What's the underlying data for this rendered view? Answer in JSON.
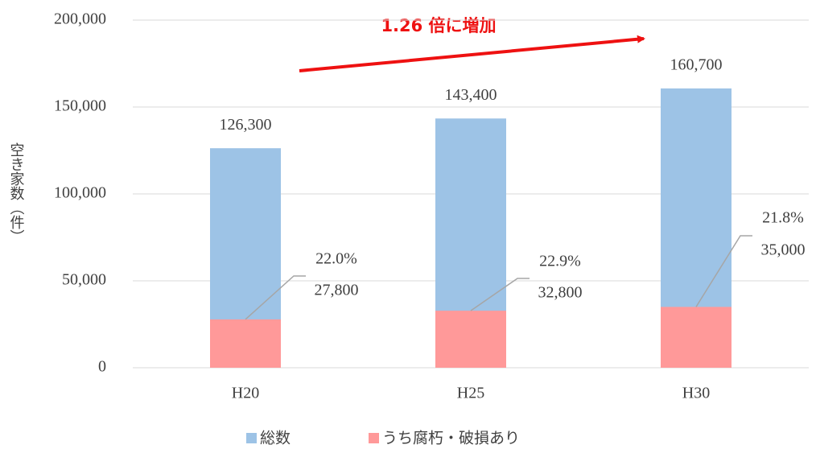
{
  "chart_data": {
    "type": "bar",
    "y_label": "空き家数（件）",
    "annotation": "1.26 倍に増加",
    "categories": [
      "H20",
      "H25",
      "H30"
    ],
    "series": [
      {
        "name": "総数",
        "color": "#9dc3e6",
        "values": [
          126300,
          143400,
          160700
        ],
        "value_labels": [
          "126,300",
          "143,400",
          "160,700"
        ]
      },
      {
        "name": "うち腐朽・破損あり",
        "color": "#ff9999",
        "values": [
          27800,
          32800,
          35000
        ],
        "value_labels": [
          "27,800",
          "32,800",
          "35,000"
        ]
      }
    ],
    "shares": [
      {
        "value": 22.0,
        "label": "22.0%"
      },
      {
        "value": 22.9,
        "label": "22.9%"
      },
      {
        "value": 21.8,
        "label": "21.8%"
      }
    ],
    "ylim": [
      0,
      200000
    ],
    "yticks": [
      0,
      {
        "value": 50000,
        "label": "50,000"
      },
      {
        "value": 100000,
        "label": "100,000"
      },
      {
        "value": 150000,
        "label": "150,000"
      },
      {
        "value": 200000,
        "label": "200,000"
      }
    ],
    "grid": true
  }
}
